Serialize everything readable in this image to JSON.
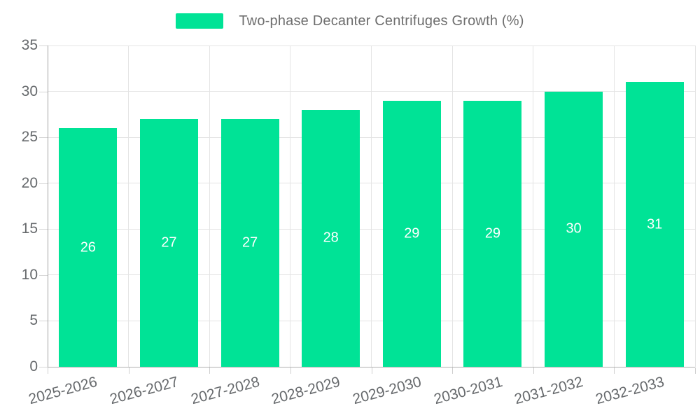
{
  "colors": {
    "bar": "#00E396",
    "bar_label": "#ffffff",
    "axis_text": "#66696c",
    "legend_text": "#6e6e6e",
    "grid": "#e4e4e4",
    "axis_line": "#a3a3a3"
  },
  "chart_data": {
    "type": "bar",
    "title": "",
    "legend": "Two-phase Decanter Centrifuges Growth (%)",
    "legend_position": "top-center",
    "grid": true,
    "categories": [
      "2025-2026",
      "2026-2027",
      "2027-2028",
      "2028-2029",
      "2029-2030",
      "2030-2031",
      "2031-2032",
      "2032-2033"
    ],
    "values": [
      26,
      27,
      27,
      28,
      29,
      29,
      30,
      31
    ],
    "data_labels": [
      "26",
      "27",
      "27",
      "28",
      "29",
      "29",
      "30",
      "31"
    ],
    "xlabel": "",
    "ylabel": "",
    "ylim": [
      0,
      35
    ],
    "ytick_step": 5,
    "yticks": [
      "0",
      "5",
      "10",
      "15",
      "20",
      "25",
      "30",
      "35"
    ]
  }
}
